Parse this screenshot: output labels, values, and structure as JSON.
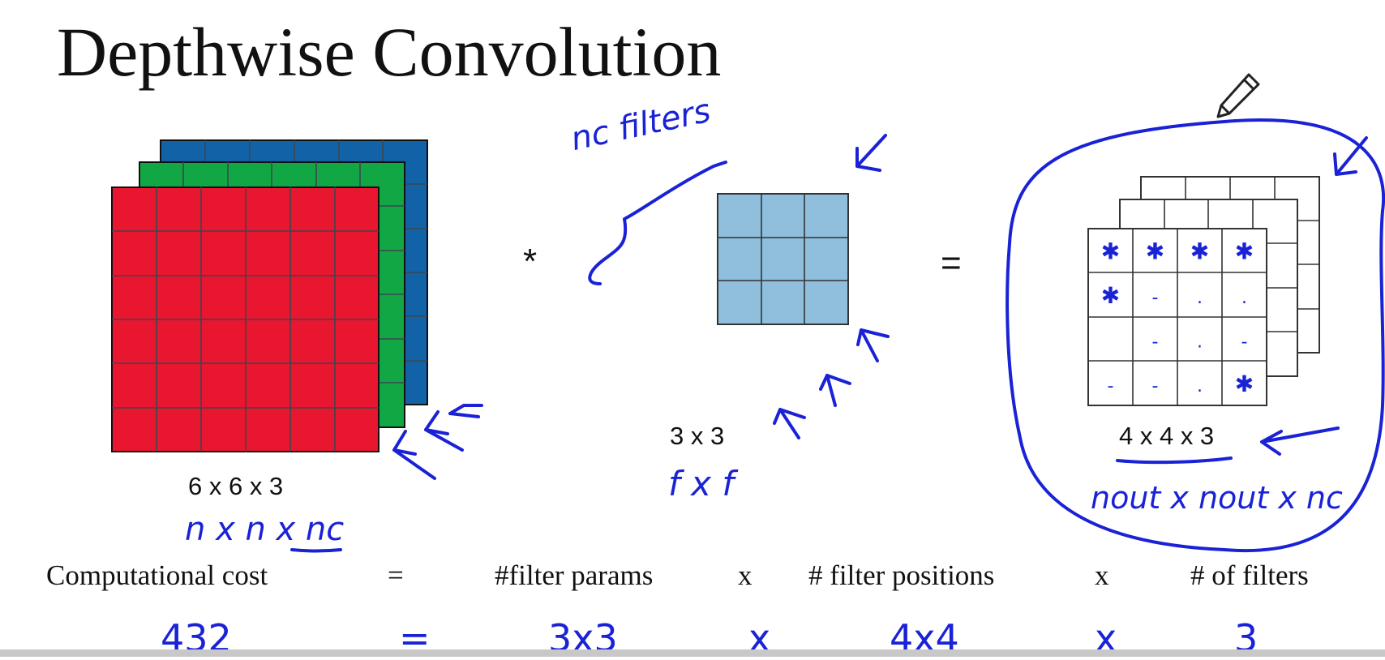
{
  "title": "Depthwise Convolution",
  "input": {
    "dims": "6 x 6 x 3",
    "note": "n x n x nc",
    "channel_colors": [
      "#1262a8",
      "#12a745",
      "#e8162e"
    ]
  },
  "operator_conv": "*",
  "filter": {
    "dims": "3 x 3",
    "note": "f x f",
    "brace_note": "nc filters",
    "color": "#8fbfdd"
  },
  "operator_equals": "=",
  "output": {
    "dims": "4 x 4 x 3",
    "note": "nout x nout x nc",
    "front_cells": [
      "✱",
      "✱",
      "✱",
      "✱",
      "✱",
      "-",
      ".",
      ".",
      "",
      "-",
      ".",
      "-",
      "-",
      "-",
      ".",
      "✱"
    ]
  },
  "cost_row": {
    "label": "Computational cost",
    "eq": "=",
    "params": "#filter params",
    "x1": "x",
    "positions": "# filter positions",
    "x2": "x",
    "filters": "# of filters"
  },
  "cost_values": {
    "total": "432",
    "eq": "=",
    "params": "3x3",
    "x1": "x",
    "positions": "4x4",
    "x2": "x",
    "filters": "3"
  }
}
